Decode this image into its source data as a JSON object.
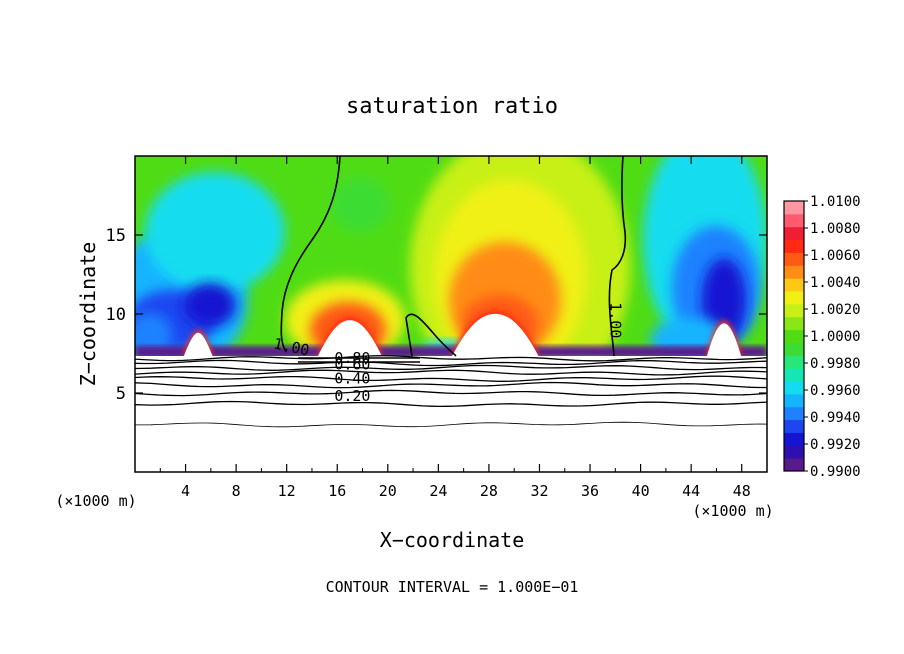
{
  "chart_data": {
    "type": "heatmap",
    "title": "saturation ratio",
    "xlabel": "X−coordinate",
    "ylabel": "Z−coordinate",
    "x_unit_left": "(×1000 m)",
    "x_unit_right": "(×1000 m)",
    "footer": "CONTOUR INTERVAL = 1.000E−01",
    "xlim": [
      0,
      50
    ],
    "ylim": [
      0,
      20
    ],
    "x_ticks": [
      4,
      8,
      12,
      16,
      20,
      24,
      28,
      32,
      36,
      40,
      44,
      48
    ],
    "x_tick_labels": [
      "4",
      "8",
      "12",
      "16",
      "20",
      "24",
      "28",
      "32",
      "36",
      "40",
      "44",
      "48"
    ],
    "y_ticks": [
      5,
      10,
      15
    ],
    "y_tick_labels": [
      "5",
      "10",
      "15"
    ],
    "colorbar": {
      "levels": [
        0.99,
        0.991,
        0.992,
        0.993,
        0.994,
        0.995,
        0.996,
        0.997,
        0.998,
        0.999,
        1.0,
        1.001,
        1.002,
        1.003,
        1.004,
        1.005,
        1.006,
        1.007,
        1.008,
        1.009,
        1.01
      ],
      "labels": [
        "0.9900",
        "0.9920",
        "0.9940",
        "0.9960",
        "0.9980",
        "1.0000",
        "1.0020",
        "1.0040",
        "1.0060",
        "1.0080",
        "1.0100"
      ],
      "colors": [
        "#5a1a8c",
        "#2e0fb0",
        "#1414d2",
        "#1e46f0",
        "#1e82ff",
        "#14b4ff",
        "#14dcf0",
        "#14e6b4",
        "#28e67a",
        "#3cdc32",
        "#50dc14",
        "#8ce614",
        "#c8f014",
        "#f0f014",
        "#ffc814",
        "#ff8c14",
        "#ff5a14",
        "#ff2a14",
        "#f01e32",
        "#ff5a6e",
        "#ff96a0"
      ]
    },
    "contour_labels": [
      {
        "text": "1.00",
        "x": 12.3,
        "y": 7.6
      },
      {
        "text": "1.00",
        "x": 37.6,
        "y": 9.6
      },
      {
        "text": "0.80",
        "x": 17.2,
        "y": 6.9
      },
      {
        "text": "0.60",
        "x": 17.2,
        "y": 6.5
      },
      {
        "text": "0.40",
        "x": 17.2,
        "y": 5.6
      },
      {
        "text": "0.20",
        "x": 17.2,
        "y": 4.5
      }
    ],
    "ground_lines_z": [
      7.2,
      6.9,
      6.6,
      6.3,
      5.9,
      5.5,
      5.0,
      4.3,
      3.0
    ],
    "cloud_patches": [
      {
        "x": 17.0,
        "base": 7.4,
        "top": 9.8,
        "w": 2.6
      },
      {
        "x": 28.5,
        "base": 7.4,
        "top": 10.2,
        "w": 3.5
      },
      {
        "x": 5.0,
        "base": 7.4,
        "top": 9.0,
        "w": 1.2
      },
      {
        "x": 46.6,
        "base": 7.4,
        "top": 9.6,
        "w": 1.4
      }
    ]
  }
}
